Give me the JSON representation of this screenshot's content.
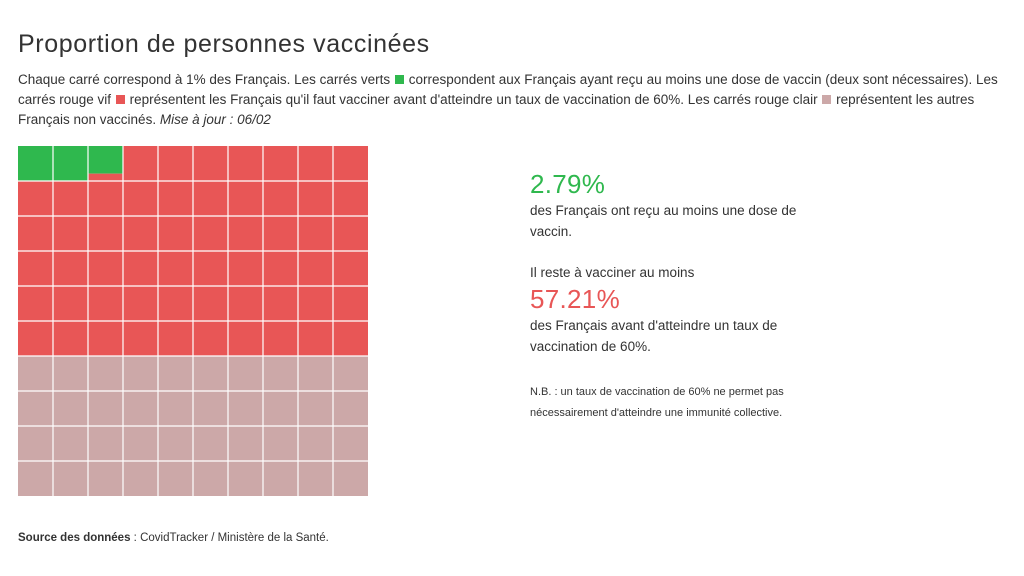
{
  "title": "Proportion de personnes vaccinées",
  "description": {
    "part1": "Chaque carré correspond à 1% des Français. Les carrés verts",
    "part2": "correspondent aux Français ayant reçu au moins une dose de vaccin (deux sont nécessaires). Les carrés rouge vif",
    "part3": "représentent les Français qu'il faut vacciner avant d'atteindre un taux de vaccination de 60%. Les carrés rouge clair",
    "part4": "représentent les autres Français non vaccinés.",
    "update": "Mise à jour : 06/02"
  },
  "colors": {
    "vaccinated": "#2fb84e",
    "to_vaccinate": "#e85656",
    "other": "#cca8a8"
  },
  "stats": {
    "vaccinated_pct": "2.79%",
    "vaccinated_text": "des Français ont reçu au moins une dose de vaccin.",
    "remaining_intro": "Il reste à vacciner au moins",
    "remaining_pct": "57.21%",
    "remaining_text": "des Français avant d'atteindre un taux de vaccination de 60%.",
    "note": "N.B. : un taux de vaccination de 60% ne permet pas nécessairement d'atteindre une immunité collective."
  },
  "source": {
    "label": "Source des données",
    "text": " : CovidTracker / Ministère de la Santé."
  },
  "chart_data": {
    "type": "waffle",
    "grid": [
      10,
      10
    ],
    "series": [
      {
        "name": "vaccinated",
        "value": 2.79
      },
      {
        "name": "to_vaccinate",
        "value": 57.21
      },
      {
        "name": "other",
        "value": 40
      }
    ]
  }
}
